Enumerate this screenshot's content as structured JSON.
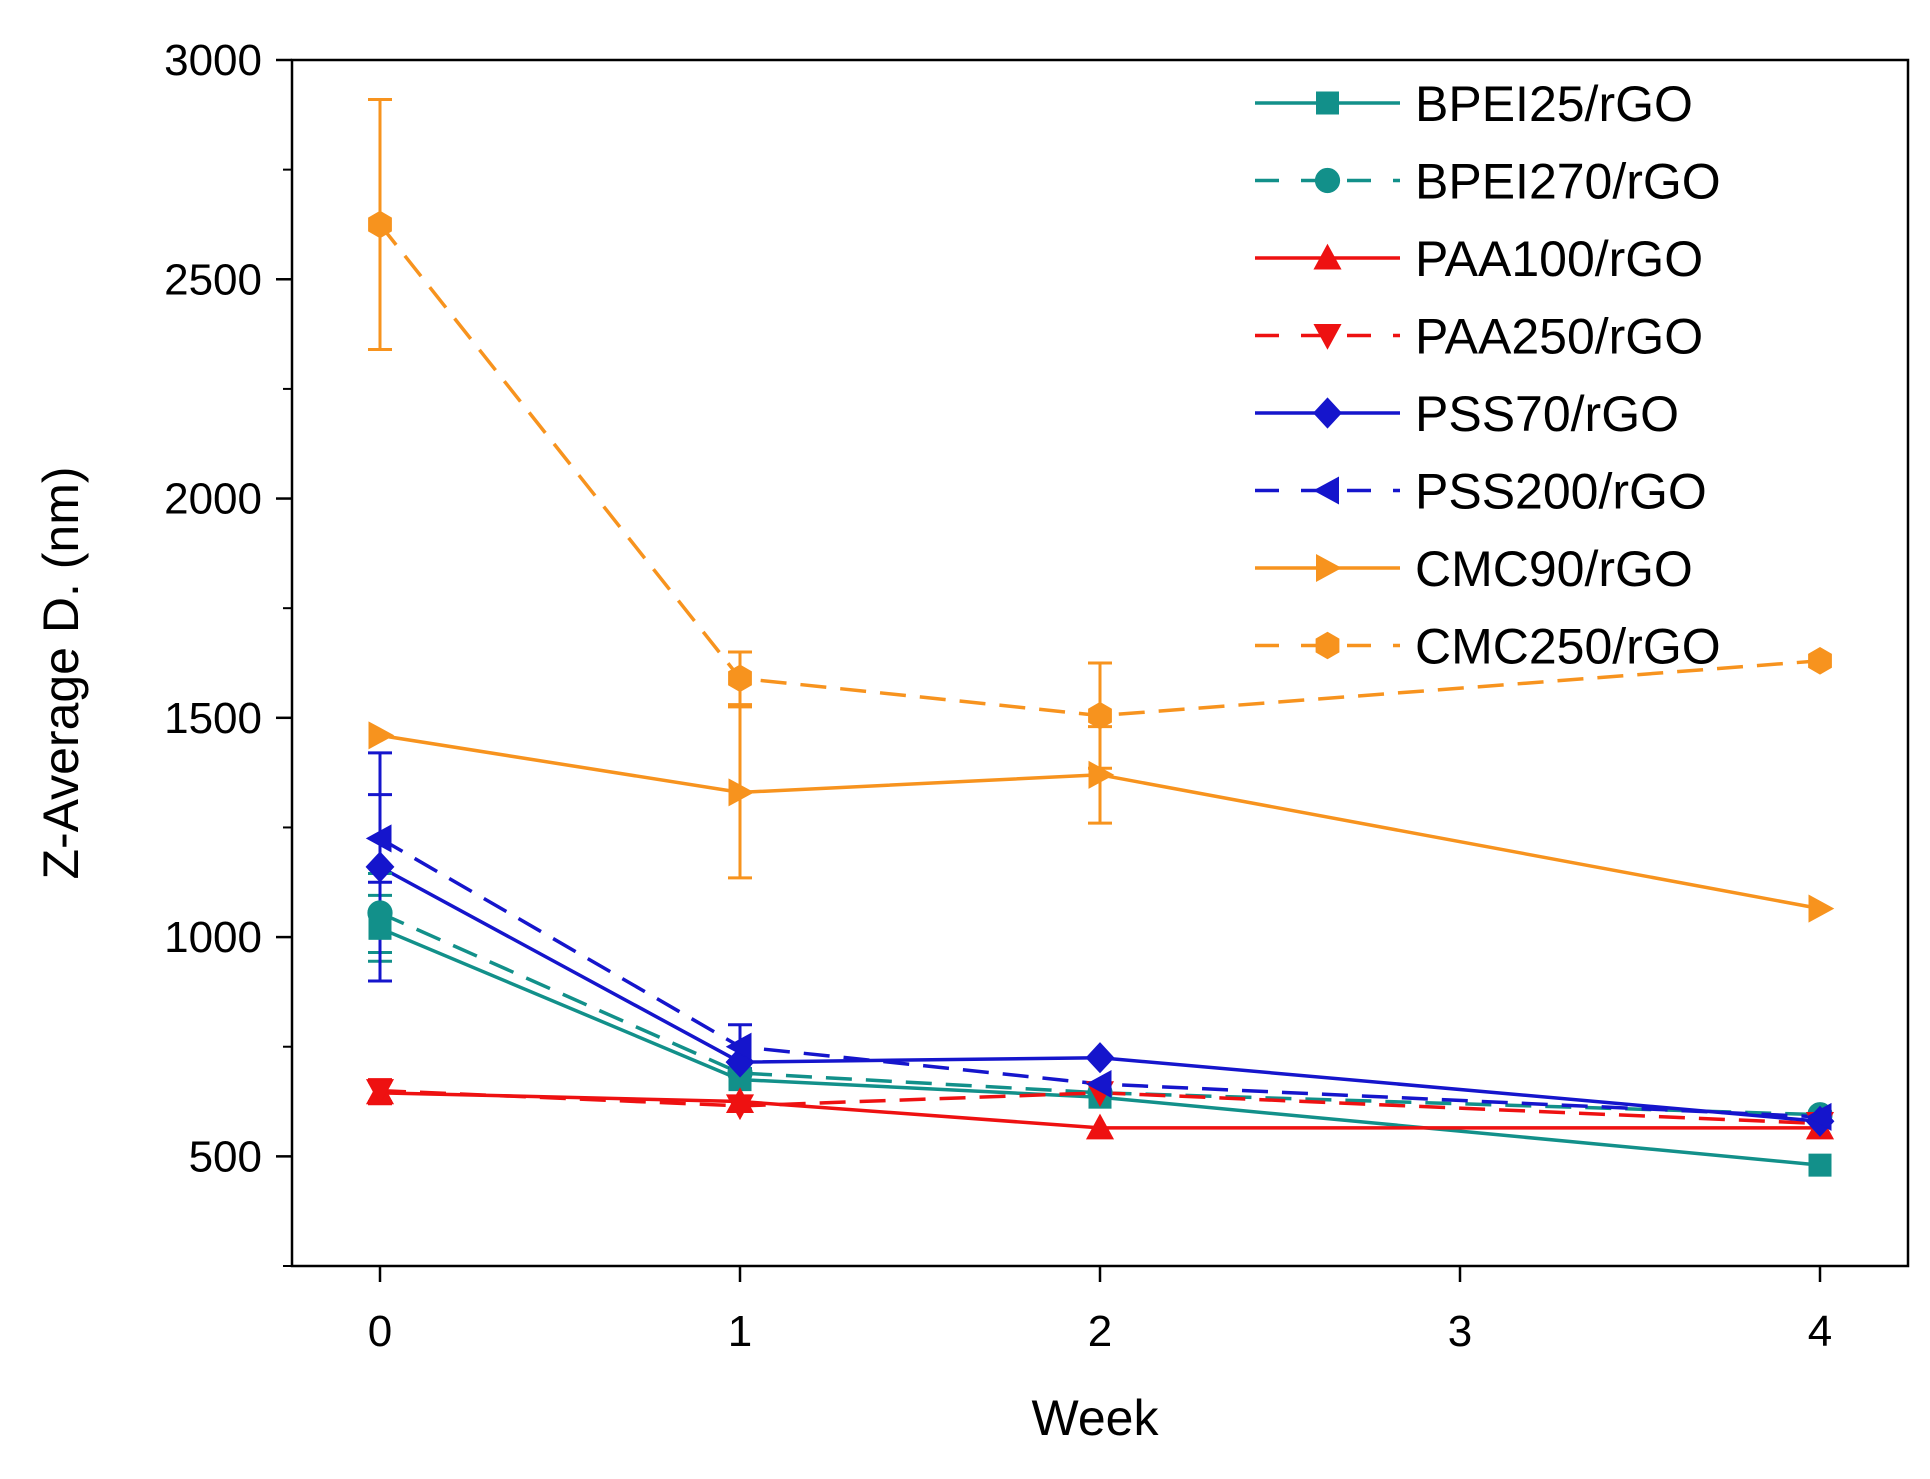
{
  "chart_data": {
    "type": "line",
    "title": "",
    "xlabel": "Week",
    "ylabel": "Z-Average D. (nm)",
    "xlim": [
      -0.25,
      4.25
    ],
    "ylim": [
      250,
      3000
    ],
    "x_ticks": [
      0,
      1,
      2,
      3,
      4
    ],
    "x_tick_labels": [
      "0",
      "1",
      "2",
      "3",
      "4"
    ],
    "y_ticks": [
      500,
      1000,
      1500,
      2000,
      2500,
      3000
    ],
    "y_tick_labels": [
      "500",
      "1000",
      "1500",
      "2000",
      "2500",
      "3000"
    ],
    "x_minor_step": 0.5,
    "y_minor_step": 250,
    "grid": false,
    "legend_position": "top-right",
    "series": [
      {
        "name": "BPEI25/rGO",
        "color": "#12908a",
        "dash": "solid",
        "marker": "square",
        "x": [
          0,
          1,
          2,
          4
        ],
        "y": [
          1020,
          675,
          635,
          480
        ],
        "err": [
          75,
          0,
          0,
          0
        ]
      },
      {
        "name": "BPEI270/rGO",
        "color": "#12908a",
        "dash": "dashed",
        "marker": "circle",
        "x": [
          0,
          1,
          2,
          4
        ],
        "y": [
          1055,
          690,
          645,
          595
        ],
        "err": [
          90,
          0,
          0,
          0
        ]
      },
      {
        "name": "PAA100/rGO",
        "color": "#ee1111",
        "dash": "solid",
        "marker": "triangle-up",
        "x": [
          0,
          1,
          2,
          4
        ],
        "y": [
          645,
          625,
          565,
          565
        ],
        "err": [
          25,
          0,
          0,
          0
        ]
      },
      {
        "name": "PAA250/rGO",
        "color": "#ee1111",
        "dash": "dashed",
        "marker": "triangle-down",
        "x": [
          0,
          1,
          2,
          4
        ],
        "y": [
          650,
          615,
          645,
          575
        ],
        "err": [
          25,
          0,
          0,
          0
        ]
      },
      {
        "name": "PSS70/rGO",
        "color": "#1515cc",
        "dash": "solid",
        "marker": "diamond",
        "x": [
          0,
          1,
          2,
          4
        ],
        "y": [
          1160,
          715,
          725,
          580
        ],
        "err": [
          260,
          0,
          0,
          0
        ]
      },
      {
        "name": "PSS200/rGO",
        "color": "#1515cc",
        "dash": "dashed",
        "marker": "triangle-left",
        "x": [
          0,
          1,
          2,
          4
        ],
        "y": [
          1225,
          750,
          665,
          590
        ],
        "err": [
          100,
          50,
          0,
          0
        ]
      },
      {
        "name": "CMC90/rGO",
        "color": "#f7931e",
        "dash": "solid",
        "marker": "triangle-right",
        "x": [
          0,
          1,
          2,
          4
        ],
        "y": [
          1460,
          1330,
          1370,
          1065
        ],
        "err": [
          0,
          195,
          110,
          0
        ]
      },
      {
        "name": "CMC250/rGO",
        "color": "#f7931e",
        "dash": "dashed",
        "marker": "hexagon",
        "x": [
          0,
          1,
          2,
          4
        ],
        "y": [
          2625,
          1590,
          1505,
          1630
        ],
        "err": [
          285,
          60,
          120,
          0
        ]
      }
    ]
  }
}
